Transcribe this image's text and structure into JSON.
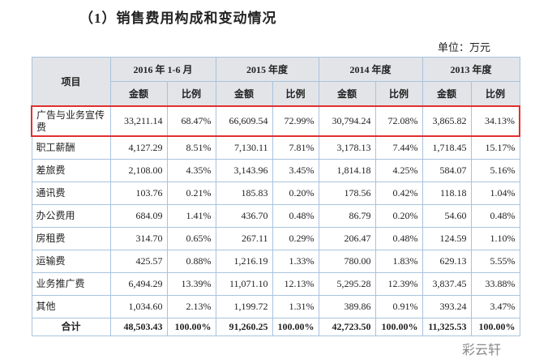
{
  "title": "（1）销售费用构成和变动情况",
  "unit": "单位：万元",
  "table": {
    "item_header": "项目",
    "periods": [
      "2016 年 1-6 月",
      "2015 年度",
      "2014 年度",
      "2013 年度"
    ],
    "subheaders": [
      "金额",
      "比例",
      "金额",
      "比例",
      "金额",
      "比例",
      "金额",
      "比例"
    ],
    "rows": [
      [
        "广告与业务宣传费",
        "33,211.14",
        "68.47%",
        "66,609.54",
        "72.99%",
        "30,794.24",
        "72.08%",
        "3,865.82",
        "34.13%"
      ],
      [
        "职工薪酬",
        "4,127.29",
        "8.51%",
        "7,130.11",
        "7.81%",
        "3,178.13",
        "7.44%",
        "1,718.45",
        "15.17%"
      ],
      [
        "差旅费",
        "2,108.00",
        "4.35%",
        "3,143.96",
        "3.45%",
        "1,814.18",
        "4.25%",
        "584.07",
        "5.16%"
      ],
      [
        "通讯费",
        "103.76",
        "0.21%",
        "185.83",
        "0.20%",
        "178.56",
        "0.42%",
        "118.18",
        "1.04%"
      ],
      [
        "办公费用",
        "684.09",
        "1.41%",
        "436.70",
        "0.48%",
        "86.79",
        "0.20%",
        "54.60",
        "0.48%"
      ],
      [
        "房租费",
        "314.70",
        "0.65%",
        "267.11",
        "0.29%",
        "206.47",
        "0.48%",
        "124.59",
        "1.10%"
      ],
      [
        "运输费",
        "425.57",
        "0.88%",
        "1,216.19",
        "1.33%",
        "780.00",
        "1.83%",
        "629.13",
        "5.55%"
      ],
      [
        "业务推广费",
        "6,494.29",
        "13.39%",
        "11,071.10",
        "12.13%",
        "5,295.28",
        "12.39%",
        "3,837.45",
        "33.88%"
      ],
      [
        "其他",
        "1,034.60",
        "2.13%",
        "1,199.72",
        "1.31%",
        "389.86",
        "0.91%",
        "393.24",
        "3.47%"
      ]
    ],
    "total": [
      "合计",
      "48,503.43",
      "100.00%",
      "91,260.25",
      "100.00%",
      "42,723.50",
      "100.00%",
      "11,325.53",
      "100.00%"
    ]
  },
  "watermark": "彩云轩"
}
